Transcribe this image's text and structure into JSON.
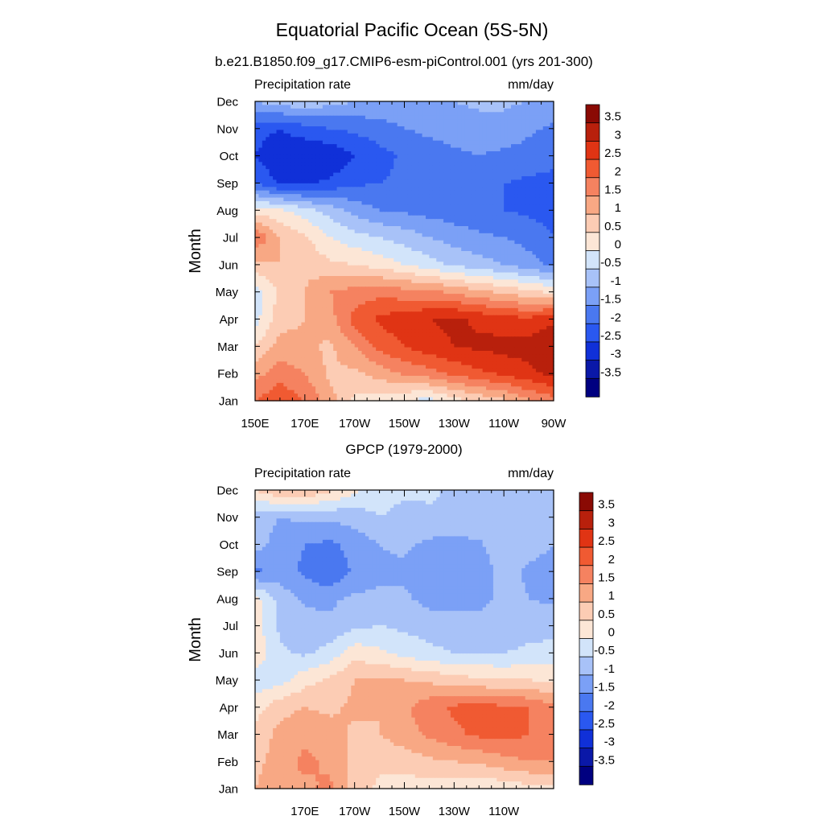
{
  "title": "Equatorial Pacific Ocean (5S-5N)",
  "levels": [
    -3.5,
    -3,
    -2.5,
    -2,
    -1.5,
    -1,
    -0.5,
    0,
    0.5,
    1,
    1.5,
    2,
    2.5,
    3,
    3.5
  ],
  "level_labels": [
    "-3.5",
    "-3",
    "-2.5",
    "-2",
    "-1.5",
    "-1",
    "-0.5",
    "0",
    "0.5",
    "1",
    "1.5",
    "2",
    "2.5",
    "3",
    "3.5"
  ],
  "colors": [
    "#000080",
    "#0a18a8",
    "#1030d8",
    "#2a58f0",
    "#4a78f0",
    "#7ba0f6",
    "#a8c2f8",
    "#d2e4fa",
    "#fce6d6",
    "#fcccb4",
    "#f8a884",
    "#f58260",
    "#f05a32",
    "#e03414",
    "#b8200c",
    "#8a0a04"
  ],
  "chart_data": [
    {
      "type": "heatmap",
      "subtitle": "b.e21.B1850.f09_g17.CMIP6-esm-piControl.001 (yrs 201-300)",
      "left_label": "Precipitation rate",
      "right_label": "mm/day",
      "ylabel": "Month",
      "y_categories": [
        "Jan",
        "Feb",
        "Mar",
        "Apr",
        "May",
        "Jun",
        "Jul",
        "Aug",
        "Sep",
        "Oct",
        "Nov",
        "Dec"
      ],
      "x_ticks": [
        "150E",
        "170E",
        "170W",
        "150W",
        "130W",
        "110W",
        "90W"
      ],
      "x": [
        150,
        160,
        170,
        180,
        190,
        200,
        210,
        220,
        230,
        240,
        250,
        260,
        270
      ],
      "values": [
        [
          2.0,
          2.4,
          2.0,
          1.2,
          0.4,
          0.3,
          0.0,
          -0.2,
          0.3,
          0.6,
          0.9,
          1.4,
          1.8
        ],
        [
          1.3,
          1.8,
          1.5,
          0.9,
          0.9,
          1.2,
          1.6,
          1.8,
          2.1,
          2.4,
          2.6,
          2.9,
          3.1
        ],
        [
          0.5,
          1.2,
          1.1,
          0.9,
          1.5,
          2.2,
          2.5,
          2.8,
          3.0,
          3.1,
          3.2,
          3.2,
          3.5
        ],
        [
          -0.2,
          0.8,
          1.0,
          1.3,
          2.2,
          2.6,
          2.8,
          3.0,
          3.1,
          2.9,
          2.7,
          2.6,
          2.9
        ],
        [
          -0.3,
          0.6,
          1.0,
          1.5,
          1.7,
          1.8,
          1.7,
          1.6,
          1.4,
          1.1,
          0.9,
          0.6,
          0.4
        ],
        [
          0.8,
          1.0,
          0.9,
          0.6,
          0.5,
          0.3,
          0.0,
          -0.3,
          -0.6,
          -0.8,
          -1.0,
          -1.3,
          -1.6
        ],
        [
          2.0,
          1.0,
          0.6,
          0.0,
          -0.3,
          -0.5,
          -0.7,
          -1.0,
          -1.2,
          -1.4,
          -1.5,
          -1.7,
          -2.0
        ],
        [
          0.3,
          0.1,
          -0.3,
          -0.7,
          -1.2,
          -1.5,
          -1.6,
          -1.7,
          -1.8,
          -1.9,
          -2.0,
          -2.1,
          -2.2
        ],
        [
          -2.0,
          -2.6,
          -2.6,
          -2.4,
          -2.1,
          -2.0,
          -1.9,
          -1.8,
          -1.8,
          -1.9,
          -2.0,
          -2.1,
          -2.2
        ],
        [
          -2.5,
          -2.9,
          -3.0,
          -2.9,
          -2.5,
          -2.2,
          -1.9,
          -1.7,
          -1.6,
          -1.5,
          -1.6,
          -1.7,
          -1.8
        ],
        [
          -2.3,
          -2.5,
          -2.2,
          -2.0,
          -1.9,
          -1.7,
          -1.5,
          -1.4,
          -1.3,
          -1.2,
          -1.2,
          -1.4,
          -1.6
        ],
        [
          -1.0,
          -0.7,
          -0.6,
          -0.8,
          -1.0,
          -1.1,
          -1.1,
          -1.1,
          -1.0,
          -0.9,
          -0.9,
          -1.0,
          -1.2
        ]
      ]
    },
    {
      "type": "heatmap",
      "subtitle": "GPCP (1979-2000)",
      "left_label": "Precipitation rate",
      "right_label": "mm/day",
      "ylabel": "Month",
      "y_categories": [
        "Jan",
        "Feb",
        "Mar",
        "Apr",
        "May",
        "Jun",
        "Jul",
        "Aug",
        "Sep",
        "Oct",
        "Nov",
        "Dec"
      ],
      "x_ticks": [
        "170E",
        "170W",
        "150W",
        "130W",
        "110W"
      ],
      "x": [
        150,
        160,
        170,
        180,
        190,
        200,
        210,
        220,
        230,
        240,
        250,
        260,
        270
      ],
      "values": [
        [
          1.0,
          1.5,
          1.4,
          1.6,
          0.8,
          0.4,
          0.3,
          0.2,
          0.1,
          0.0,
          0.2,
          0.3,
          0.4
        ],
        [
          0.8,
          1.3,
          1.6,
          1.4,
          0.8,
          0.6,
          0.7,
          0.9,
          1.0,
          1.1,
          1.3,
          1.5,
          1.5
        ],
        [
          0.6,
          1.2,
          1.4,
          1.2,
          0.9,
          1.0,
          1.3,
          1.6,
          1.9,
          2.1,
          2.2,
          2.0,
          1.5
        ],
        [
          0.3,
          0.8,
          1.0,
          0.9,
          1.1,
          1.0,
          1.4,
          1.8,
          2.1,
          2.2,
          2.1,
          2.0,
          1.6
        ],
        [
          -0.3,
          -0.2,
          0.3,
          0.6,
          1.0,
          1.1,
          1.0,
          0.9,
          0.7,
          0.6,
          0.5,
          0.5,
          0.4
        ],
        [
          0.4,
          -0.4,
          -0.6,
          -0.3,
          0.3,
          0.1,
          -0.2,
          -0.4,
          -0.5,
          -0.5,
          -0.5,
          -0.4,
          -0.3
        ],
        [
          0.2,
          -0.6,
          -0.8,
          -0.9,
          -0.6,
          -0.5,
          -0.6,
          -0.7,
          -0.7,
          -0.8,
          -0.8,
          -0.7,
          -0.7
        ],
        [
          0.2,
          -0.7,
          -1.1,
          -1.1,
          -0.9,
          -0.9,
          -0.9,
          -1.2,
          -1.3,
          -1.2,
          -0.8,
          -1.0,
          -1.1
        ],
        [
          -1.6,
          -1.3,
          -1.6,
          -2.0,
          -1.4,
          -1.1,
          -1.1,
          -1.4,
          -1.4,
          -1.3,
          -0.8,
          -1.1,
          -1.2
        ],
        [
          -0.8,
          -1.2,
          -1.5,
          -1.6,
          -1.3,
          -1.0,
          -0.9,
          -1.1,
          -1.2,
          -1.1,
          -0.6,
          -0.8,
          -1.0
        ],
        [
          -0.8,
          -1.0,
          -0.9,
          -0.9,
          -0.8,
          -0.5,
          -0.7,
          -0.6,
          -0.6,
          -0.5,
          -0.7,
          -0.8,
          -0.9
        ],
        [
          0.5,
          1.0,
          1.0,
          0.6,
          0.1,
          -0.2,
          -0.4,
          -0.4,
          -0.6,
          -0.7,
          -0.6,
          -0.6,
          -0.6
        ]
      ]
    }
  ]
}
